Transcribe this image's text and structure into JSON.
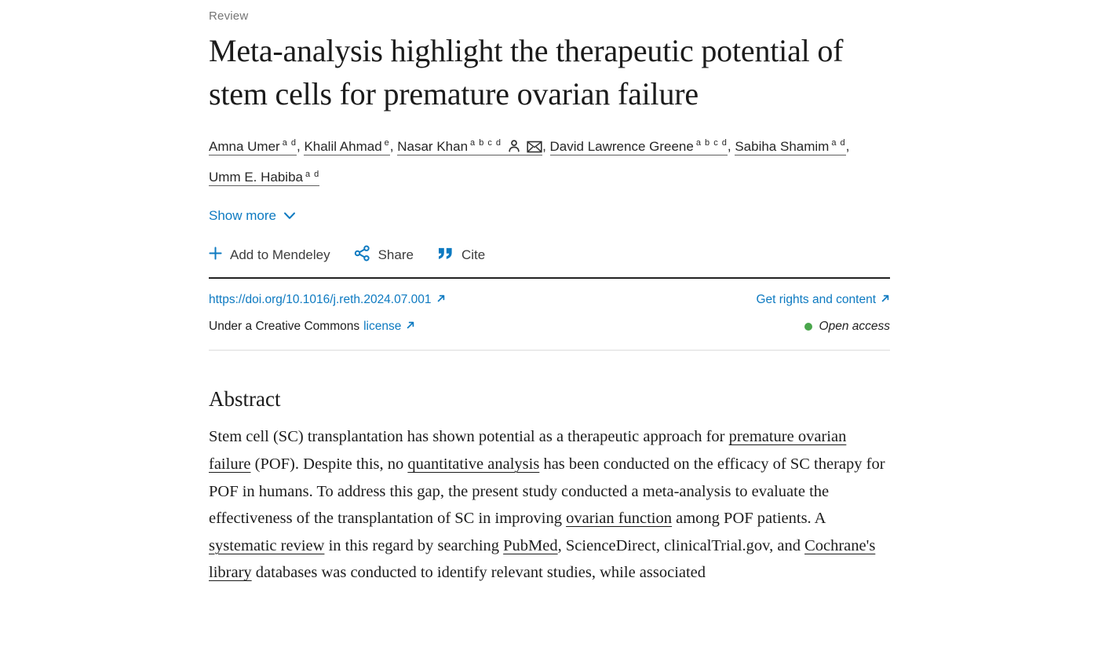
{
  "page": {
    "article_type": "Review",
    "title": "Meta-analysis highlight the therapeutic potential of stem cells for premature ovarian failure"
  },
  "authors": {
    "list": [
      {
        "name": "Amna Umer",
        "sup": "a d",
        "icons": []
      },
      {
        "name": "Khalil Ahmad",
        "sup": "e",
        "icons": []
      },
      {
        "name": "Nasar Khan",
        "sup": "a b c d",
        "icons": [
          "person-icon",
          "envelope-icon"
        ]
      },
      {
        "name": "David Lawrence Greene",
        "sup": "a b c d",
        "icons": []
      },
      {
        "name": "Sabiha Shamim",
        "sup": "a d",
        "icons": []
      },
      {
        "name": "Umm E. Habiba",
        "sup": "a d",
        "icons": []
      }
    ],
    "separator": ", ",
    "show_more_label": "Show more"
  },
  "toolbar": {
    "add_to_mendeley_label": "Add to Mendeley",
    "share_label": "Share",
    "cite_label": "Cite"
  },
  "links_row": {
    "doi_label": "https://doi.org/10.1016/j.reth.2024.07.001",
    "rights_label": "Get rights and content",
    "license_prefix": "Under a Creative Commons",
    "license_link_label": "license",
    "open_access_label": "Open access"
  },
  "abstract": {
    "heading": "Abstract",
    "segments": [
      {
        "text": "Stem cell (SC) transplantation has shown potential as a therapeutic approach for ",
        "link": false
      },
      {
        "text": "premature ovarian failure",
        "link": true
      },
      {
        "text": " (POF). Despite this, no ",
        "link": false
      },
      {
        "text": "quantitative analysis",
        "link": true
      },
      {
        "text": " has been conducted on the efficacy of SC therapy for POF in humans. To address this gap, the present study conducted a meta-analysis to evaluate the effectiveness of the transplantation of SC in improving ",
        "link": false
      },
      {
        "text": "ovarian function",
        "link": true
      },
      {
        "text": " among POF patients. A ",
        "link": false
      },
      {
        "text": "systematic review",
        "link": true
      },
      {
        "text": " in this regard by searching ",
        "link": false
      },
      {
        "text": "PubMed",
        "link": true
      },
      {
        "text": ", ScienceDirect, clinicalTrial.gov, and ",
        "link": false
      },
      {
        "text": "Cochrane's library",
        "link": true
      },
      {
        "text": " databases was conducted to identify relevant studies, while associated",
        "link": false
      }
    ]
  },
  "colors": {
    "link_blue": "#0d7ac1",
    "open_access_green": "#4aa64c",
    "text_dark": "#212121",
    "muted_gray": "#757575"
  }
}
